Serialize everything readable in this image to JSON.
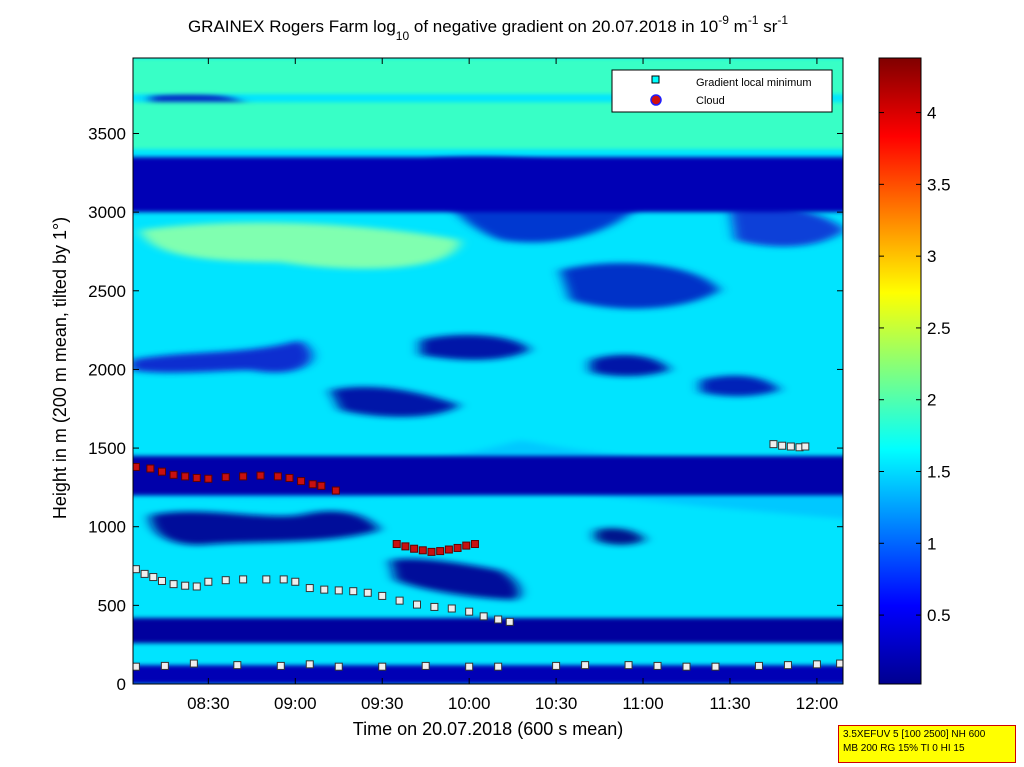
{
  "chart_data": {
    "type": "heatmap",
    "title": {
      "prefix": "GRAINEX Rogers Farm log",
      "log_base": "10",
      "middle": " of negative gradient on 20.07.2018 in 10",
      "exp1": "-9",
      "unit_m": " m",
      "exp2": "-1",
      "unit_sr": " sr",
      "exp3": "-1"
    },
    "xlabel": "Time on 20.07.2018 (600 s mean)",
    "ylabel": "Height in m (200 m mean, tilted by 1°)",
    "x_ticks": [
      "08:30",
      "09:00",
      "09:30",
      "10:00",
      "10:30",
      "11:00",
      "11:30",
      "12:00"
    ],
    "x_range": [
      "08:04",
      "12:09"
    ],
    "y_ticks": [
      "0",
      "500",
      "1000",
      "1500",
      "2000",
      "2500",
      "3000",
      "3500"
    ],
    "y_range": [
      0,
      3980
    ],
    "colorbar": {
      "colormap": "jet",
      "range": [
        0.02,
        4.38
      ],
      "ticks": [
        "0.5",
        "1",
        "1.5",
        "2",
        "2.5",
        "3",
        "3.5",
        "4"
      ]
    },
    "legend": {
      "placement": "top-right",
      "entries": [
        {
          "label": "Gradient local minimum",
          "marker": "square",
          "color": "#00ffff"
        },
        {
          "label": "Cloud",
          "marker": "circle",
          "color": "#d01010"
        }
      ]
    },
    "background_bands": [
      {
        "height_from": 0,
        "height_to": 120,
        "level": 0.25
      },
      {
        "height_from": 260,
        "height_to": 420,
        "level": 0.15
      },
      {
        "height_from": 1200,
        "height_to": 1450,
        "level": 0.2
      },
      {
        "height_from": 3000,
        "height_to": 3350,
        "level": 0.25
      },
      {
        "height_from": 3400,
        "height_to": 3700,
        "level": 1.9
      },
      {
        "height_from": 3750,
        "height_to": 3980,
        "level": 1.9
      }
    ],
    "series": [
      {
        "name": "Gradient local minimum",
        "points": [
          [
            "08:05",
            730
          ],
          [
            "08:08",
            700
          ],
          [
            "08:11",
            680
          ],
          [
            "08:14",
            655
          ],
          [
            "08:18",
            635
          ],
          [
            "08:22",
            625
          ],
          [
            "08:26",
            620
          ],
          [
            "08:30",
            650
          ],
          [
            "08:36",
            660
          ],
          [
            "08:42",
            665
          ],
          [
            "08:50",
            665
          ],
          [
            "08:56",
            665
          ],
          [
            "09:00",
            650
          ],
          [
            "09:05",
            610
          ],
          [
            "09:10",
            600
          ],
          [
            "09:15",
            595
          ],
          [
            "09:20",
            590
          ],
          [
            "09:25",
            580
          ],
          [
            "09:30",
            560
          ],
          [
            "09:36",
            530
          ],
          [
            "09:42",
            505
          ],
          [
            "09:48",
            490
          ],
          [
            "09:54",
            480
          ],
          [
            "10:00",
            460
          ],
          [
            "10:05",
            430
          ],
          [
            "10:10",
            410
          ],
          [
            "10:14",
            395
          ],
          [
            "11:45",
            1525
          ],
          [
            "11:48",
            1515
          ],
          [
            "11:51",
            1510
          ],
          [
            "11:54",
            1505
          ],
          [
            "11:56",
            1510
          ],
          [
            "08:05",
            110
          ],
          [
            "08:15",
            115
          ],
          [
            "08:25",
            130
          ],
          [
            "08:40",
            120
          ],
          [
            "08:55",
            115
          ],
          [
            "09:05",
            125
          ],
          [
            "09:15",
            110
          ],
          [
            "09:30",
            110
          ],
          [
            "09:45",
            115
          ],
          [
            "10:00",
            110
          ],
          [
            "10:10",
            110
          ],
          [
            "10:30",
            115
          ],
          [
            "10:40",
            120
          ],
          [
            "10:55",
            120
          ],
          [
            "11:05",
            115
          ],
          [
            "11:15",
            110
          ],
          [
            "11:25",
            110
          ],
          [
            "11:40",
            115
          ],
          [
            "11:50",
            120
          ],
          [
            "12:00",
            125
          ],
          [
            "12:08",
            130
          ]
        ]
      },
      {
        "name": "Cloud",
        "points": [
          [
            "08:05",
            1380
          ],
          [
            "08:10",
            1370
          ],
          [
            "08:14",
            1350
          ],
          [
            "08:18",
            1330
          ],
          [
            "08:22",
            1320
          ],
          [
            "08:26",
            1310
          ],
          [
            "08:30",
            1305
          ],
          [
            "08:36",
            1315
          ],
          [
            "08:42",
            1320
          ],
          [
            "08:48",
            1325
          ],
          [
            "08:54",
            1320
          ],
          [
            "08:58",
            1310
          ],
          [
            "09:02",
            1290
          ],
          [
            "09:06",
            1270
          ],
          [
            "09:09",
            1260
          ],
          [
            "09:14",
            1230
          ],
          [
            "09:35",
            890
          ],
          [
            "09:38",
            875
          ],
          [
            "09:41",
            860
          ],
          [
            "09:44",
            850
          ],
          [
            "09:47",
            840
          ],
          [
            "09:50",
            845
          ],
          [
            "09:53",
            855
          ],
          [
            "09:56",
            865
          ],
          [
            "09:59",
            880
          ],
          [
            "10:02",
            890
          ]
        ]
      }
    ]
  },
  "info_box": {
    "line1": "3.5XEFUV 5 [100 2500] NH 600",
    "line2": "MB 200 RG 15% TI 0 HI 15"
  }
}
